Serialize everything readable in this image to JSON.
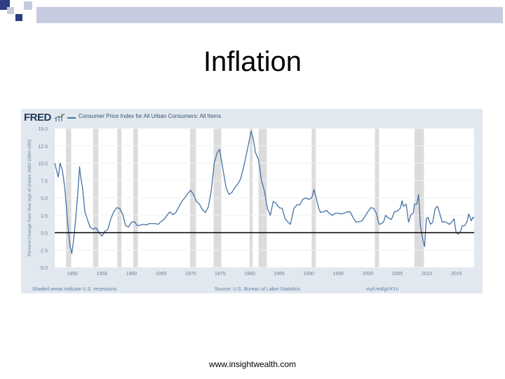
{
  "slide": {
    "title": "Inflation",
    "footer_url": "www.insightwealth.com"
  },
  "chart_header": {
    "logo": "FRED",
    "series_label": "Consumer Price Index for All Urban Consumers: All Items"
  },
  "chart_footer": {
    "recession_note": "Shaded areas indicate U.S. recessions",
    "source": "Source: U.S. Bureau of Labor Statistics",
    "link": "myf.red/g/rXYc"
  },
  "colors": {
    "line": "#4572a7",
    "panel_bg": "#e2e8ef",
    "plot_bg": "#ffffff",
    "recession_shade": "#dcdcdc",
    "zero_line": "#000000",
    "deco_dark": "#2e3e80",
    "deco_light": "#c7cbe0"
  },
  "chart_data": {
    "type": "line",
    "title": "",
    "xlabel": "",
    "ylabel": "Percent Change from Year Ago of (Index 1982-1984=100)",
    "ylim": [
      -5,
      15
    ],
    "xlim": [
      1947,
      2018
    ],
    "y_ticks": [
      "15.0",
      "12.5",
      "10.0",
      "7.5",
      "5.0",
      "2.5",
      "0.0",
      "-2.5",
      "-5.0"
    ],
    "x_ticks": [
      "1950",
      "1955",
      "1960",
      "1965",
      "1970",
      "1975",
      "1980",
      "1985",
      "1990",
      "1995",
      "2000",
      "2005",
      "2010",
      "2015"
    ],
    "recessions": [
      [
        1948.9,
        1949.8
      ],
      [
        1953.5,
        1954.4
      ],
      [
        1957.6,
        1958.3
      ],
      [
        1960.3,
        1961.1
      ],
      [
        1969.9,
        1970.9
      ],
      [
        1973.9,
        1975.2
      ],
      [
        1980.0,
        1980.5
      ],
      [
        1981.5,
        1982.9
      ],
      [
        1990.5,
        1991.2
      ],
      [
        2001.2,
        2001.9
      ],
      [
        2007.9,
        2009.5
      ]
    ],
    "reference_line": 0,
    "series": [
      {
        "values": [
          [
            1947.0,
            10.0
          ],
          [
            1947.3,
            9.0
          ],
          [
            1947.6,
            8.0
          ],
          [
            1947.9,
            10.0
          ],
          [
            1948.3,
            9.0
          ],
          [
            1948.7,
            6.5
          ],
          [
            1949.0,
            3.5
          ],
          [
            1949.3,
            0.5
          ],
          [
            1949.6,
            -2.0
          ],
          [
            1949.9,
            -3.0
          ],
          [
            1950.2,
            -1.0
          ],
          [
            1950.5,
            1.5
          ],
          [
            1950.9,
            5.5
          ],
          [
            1951.2,
            9.5
          ],
          [
            1951.4,
            8.0
          ],
          [
            1951.7,
            6.5
          ],
          [
            1952.1,
            3.0
          ],
          [
            1952.5,
            2.0
          ],
          [
            1953.0,
            0.8
          ],
          [
            1953.5,
            0.5
          ],
          [
            1954.0,
            0.7
          ],
          [
            1954.5,
            0.0
          ],
          [
            1955.0,
            -0.5
          ],
          [
            1955.5,
            0.2
          ],
          [
            1956.0,
            0.5
          ],
          [
            1956.5,
            2.0
          ],
          [
            1957.0,
            3.0
          ],
          [
            1957.5,
            3.6
          ],
          [
            1958.0,
            3.5
          ],
          [
            1958.5,
            2.7
          ],
          [
            1959.0,
            1.0
          ],
          [
            1959.5,
            0.8
          ],
          [
            1960.0,
            1.5
          ],
          [
            1960.5,
            1.6
          ],
          [
            1961.0,
            1.0
          ],
          [
            1961.5,
            1.1
          ],
          [
            1962.0,
            1.2
          ],
          [
            1962.5,
            1.1
          ],
          [
            1963.0,
            1.3
          ],
          [
            1963.5,
            1.3
          ],
          [
            1964.0,
            1.3
          ],
          [
            1964.5,
            1.2
          ],
          [
            1965.0,
            1.6
          ],
          [
            1965.5,
            1.9
          ],
          [
            1966.0,
            2.5
          ],
          [
            1966.5,
            3.0
          ],
          [
            1967.0,
            2.6
          ],
          [
            1967.5,
            2.9
          ],
          [
            1968.0,
            3.7
          ],
          [
            1968.5,
            4.5
          ],
          [
            1969.0,
            5.0
          ],
          [
            1969.5,
            5.6
          ],
          [
            1970.0,
            6.1
          ],
          [
            1970.5,
            5.5
          ],
          [
            1971.0,
            4.5
          ],
          [
            1971.5,
            4.1
          ],
          [
            1972.0,
            3.3
          ],
          [
            1972.5,
            2.9
          ],
          [
            1973.0,
            3.7
          ],
          [
            1973.5,
            6.0
          ],
          [
            1974.0,
            10.0
          ],
          [
            1974.5,
            11.5
          ],
          [
            1974.9,
            12.0
          ],
          [
            1975.3,
            10.0
          ],
          [
            1975.6,
            8.5
          ],
          [
            1976.0,
            6.5
          ],
          [
            1976.5,
            5.5
          ],
          [
            1977.0,
            5.8
          ],
          [
            1977.5,
            6.5
          ],
          [
            1978.0,
            7.0
          ],
          [
            1978.5,
            7.8
          ],
          [
            1979.0,
            9.5
          ],
          [
            1979.5,
            11.5
          ],
          [
            1980.0,
            13.5
          ],
          [
            1980.25,
            14.6
          ],
          [
            1980.6,
            13.5
          ],
          [
            1981.0,
            11.5
          ],
          [
            1981.5,
            10.5
          ],
          [
            1982.0,
            7.5
          ],
          [
            1982.5,
            6.0
          ],
          [
            1983.0,
            3.5
          ],
          [
            1983.5,
            2.5
          ],
          [
            1984.0,
            4.5
          ],
          [
            1984.5,
            4.2
          ],
          [
            1985.0,
            3.6
          ],
          [
            1985.5,
            3.5
          ],
          [
            1986.0,
            2.0
          ],
          [
            1986.5,
            1.5
          ],
          [
            1986.9,
            1.2
          ],
          [
            1987.5,
            3.5
          ],
          [
            1988.0,
            4.0
          ],
          [
            1988.5,
            4.0
          ],
          [
            1989.0,
            4.8
          ],
          [
            1989.5,
            5.0
          ],
          [
            1990.0,
            4.8
          ],
          [
            1990.5,
            5.0
          ],
          [
            1990.9,
            6.2
          ],
          [
            1991.3,
            4.9
          ],
          [
            1991.7,
            3.5
          ],
          [
            1992.0,
            2.9
          ],
          [
            1992.5,
            3.0
          ],
          [
            1993.0,
            3.2
          ],
          [
            1993.5,
            2.8
          ],
          [
            1994.0,
            2.5
          ],
          [
            1994.5,
            2.8
          ],
          [
            1995.0,
            2.8
          ],
          [
            1995.5,
            2.7
          ],
          [
            1996.0,
            2.8
          ],
          [
            1996.5,
            3.0
          ],
          [
            1997.0,
            3.0
          ],
          [
            1997.5,
            2.2
          ],
          [
            1998.0,
            1.5
          ],
          [
            1998.5,
            1.6
          ],
          [
            1999.0,
            1.7
          ],
          [
            1999.5,
            2.3
          ],
          [
            2000.0,
            3.0
          ],
          [
            2000.5,
            3.6
          ],
          [
            2001.0,
            3.5
          ],
          [
            2001.5,
            2.7
          ],
          [
            2001.9,
            1.2
          ],
          [
            2002.3,
            1.3
          ],
          [
            2002.7,
            1.6
          ],
          [
            2003.0,
            2.5
          ],
          [
            2003.5,
            2.1
          ],
          [
            2004.0,
            1.9
          ],
          [
            2004.5,
            3.0
          ],
          [
            2005.0,
            3.1
          ],
          [
            2005.5,
            3.5
          ],
          [
            2005.8,
            4.6
          ],
          [
            2006.0,
            3.8
          ],
          [
            2006.5,
            4.1
          ],
          [
            2006.9,
            1.5
          ],
          [
            2007.3,
            2.6
          ],
          [
            2007.7,
            2.8
          ],
          [
            2007.9,
            4.1
          ],
          [
            2008.3,
            4.1
          ],
          [
            2008.6,
            5.5
          ],
          [
            2008.9,
            1.0
          ],
          [
            2009.2,
            -0.5
          ],
          [
            2009.4,
            -1.3
          ],
          [
            2009.6,
            -2.0
          ],
          [
            2009.9,
            2.0
          ],
          [
            2010.2,
            2.2
          ],
          [
            2010.6,
            1.2
          ],
          [
            2011.0,
            1.5
          ],
          [
            2011.4,
            3.5
          ],
          [
            2011.8,
            3.8
          ],
          [
            2012.2,
            2.7
          ],
          [
            2012.6,
            1.5
          ],
          [
            2013.0,
            1.6
          ],
          [
            2013.4,
            1.4
          ],
          [
            2013.8,
            1.2
          ],
          [
            2014.2,
            1.5
          ],
          [
            2014.6,
            2.0
          ],
          [
            2014.95,
            0.0
          ],
          [
            2015.3,
            -0.2
          ],
          [
            2015.7,
            0.2
          ],
          [
            2016.0,
            1.0
          ],
          [
            2016.4,
            1.0
          ],
          [
            2016.8,
            1.6
          ],
          [
            2017.1,
            2.7
          ],
          [
            2017.5,
            1.7
          ],
          [
            2017.8,
            2.2
          ],
          [
            2018.0,
            2.1
          ]
        ]
      }
    ]
  }
}
